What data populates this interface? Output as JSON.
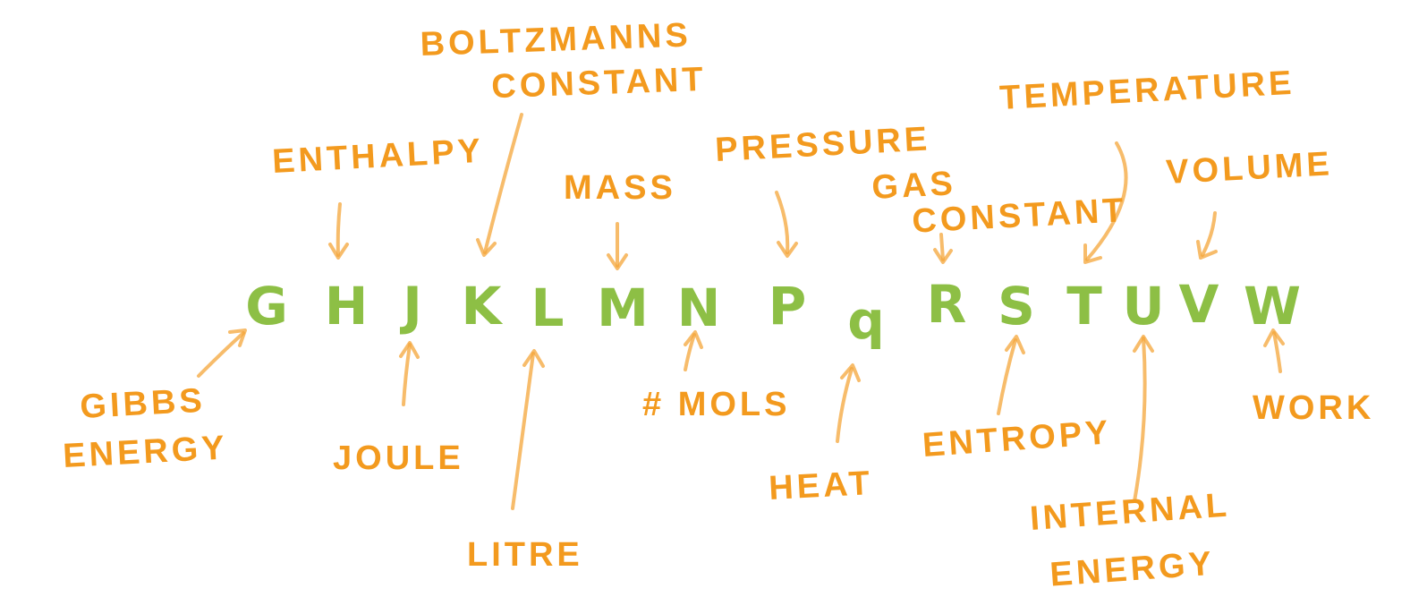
{
  "colors": {
    "letter": "#8dbf45",
    "label": "#f39a1e",
    "arrow": "#f4a53a"
  },
  "letters": [
    "G",
    "H",
    "J",
    "K",
    "L",
    "M",
    "N",
    "P",
    "q",
    "R",
    "S",
    "T",
    "U",
    "V",
    "W"
  ],
  "labels": {
    "gibbs": [
      "GIBBS",
      "ENERGY"
    ],
    "enthalpy": [
      "ENTHALPY"
    ],
    "joule": [
      "JOULE"
    ],
    "boltzmann": [
      "BOLTZMANNS",
      "CONSTANT"
    ],
    "litre": [
      "LITRE"
    ],
    "mass": [
      "MASS"
    ],
    "mols": [
      "# MOLS"
    ],
    "pressure": [
      "PRESSURE"
    ],
    "heat": [
      "HEAT"
    ],
    "gas": [
      "GAS",
      "CONSTANT"
    ],
    "entropy": [
      "ENTROPY"
    ],
    "temperature": [
      "TEMPERATURE"
    ],
    "internal": [
      "INTERNAL",
      "ENERGY"
    ],
    "volume": [
      "VOLUME"
    ],
    "work": [
      "WORK"
    ]
  }
}
